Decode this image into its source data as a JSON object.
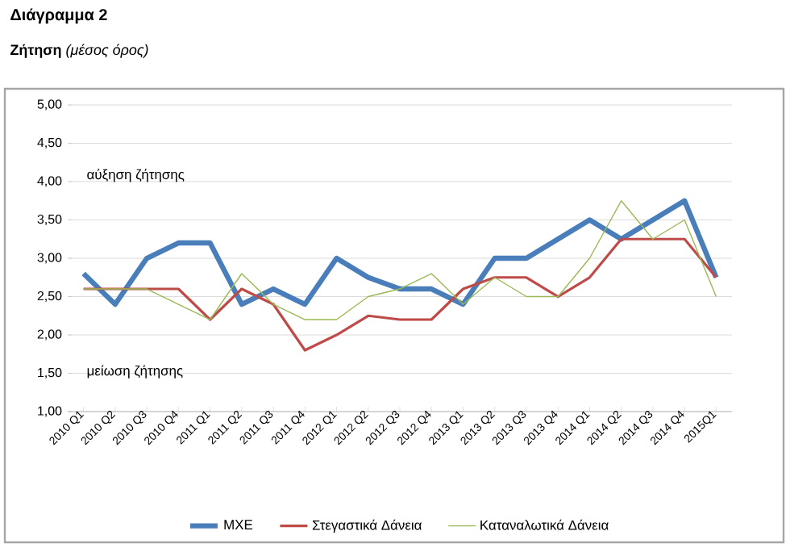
{
  "chart_data": {
    "type": "line",
    "title": "Διάγραμμα 2",
    "subtitle": "**Ζήτηση** *(μέσος όρος)*",
    "categories": [
      "2010 Q1",
      "2010 Q2",
      "2010 Q3",
      "2010 Q4",
      "2011 Q1",
      "2011 Q2",
      "2011 Q3",
      "2011 Q4",
      "2012 Q1",
      "2012 Q2",
      "2012 Q3",
      "2012 Q4",
      "2013 Q1",
      "2013 Q2",
      "2013 Q3",
      "2013 Q4",
      "2014 Q1",
      "2014 Q2",
      "2014 Q3",
      "2014 Q4",
      "2015Q1"
    ],
    "series": [
      {
        "name": "ΜΧΕ",
        "color": "#4a7ebb",
        "values": [
          2.8,
          2.4,
          3.0,
          3.2,
          3.2,
          2.4,
          2.6,
          2.4,
          3.0,
          2.75,
          2.6,
          2.6,
          2.4,
          3.0,
          3.0,
          3.25,
          3.5,
          3.25,
          3.5,
          3.75,
          2.75
        ]
      },
      {
        "name": "Στεγαστικά Δάνεια",
        "color": "#be4b48",
        "values": [
          2.6,
          2.6,
          2.6,
          2.6,
          2.2,
          2.6,
          2.4,
          1.8,
          2.0,
          2.25,
          2.2,
          2.2,
          2.6,
          2.75,
          2.75,
          2.5,
          2.75,
          3.25,
          3.25,
          3.25,
          2.75
        ]
      },
      {
        "name": "Καταναλωτικά Δάνεια",
        "color": "#98b954",
        "values": [
          2.6,
          2.6,
          2.6,
          2.4,
          2.2,
          2.8,
          2.4,
          2.2,
          2.2,
          2.5,
          2.6,
          2.8,
          2.4,
          2.75,
          2.5,
          2.5,
          3.0,
          3.75,
          3.25,
          3.5,
          2.5
        ]
      }
    ],
    "ylim": [
      1,
      5
    ],
    "yticks": [
      {
        "value": 1,
        "label": "1,00"
      },
      {
        "value": 1.5,
        "label": "1,50"
      },
      {
        "value": 2,
        "label": "2,00"
      },
      {
        "value": 2.5,
        "label": "2,50"
      },
      {
        "value": 3,
        "label": "3,00"
      },
      {
        "value": 3.5,
        "label": "3,50"
      },
      {
        "value": 4,
        "label": "4,00"
      },
      {
        "value": 4.5,
        "label": "4,50"
      },
      {
        "value": 5,
        "label": "5,00"
      }
    ],
    "grid": "y",
    "legend": "bottom",
    "marker": "none",
    "line_style": "solid",
    "annotations": [
      "αύξηση ζήτησης",
      "μείωση ζήτησης"
    ]
  }
}
